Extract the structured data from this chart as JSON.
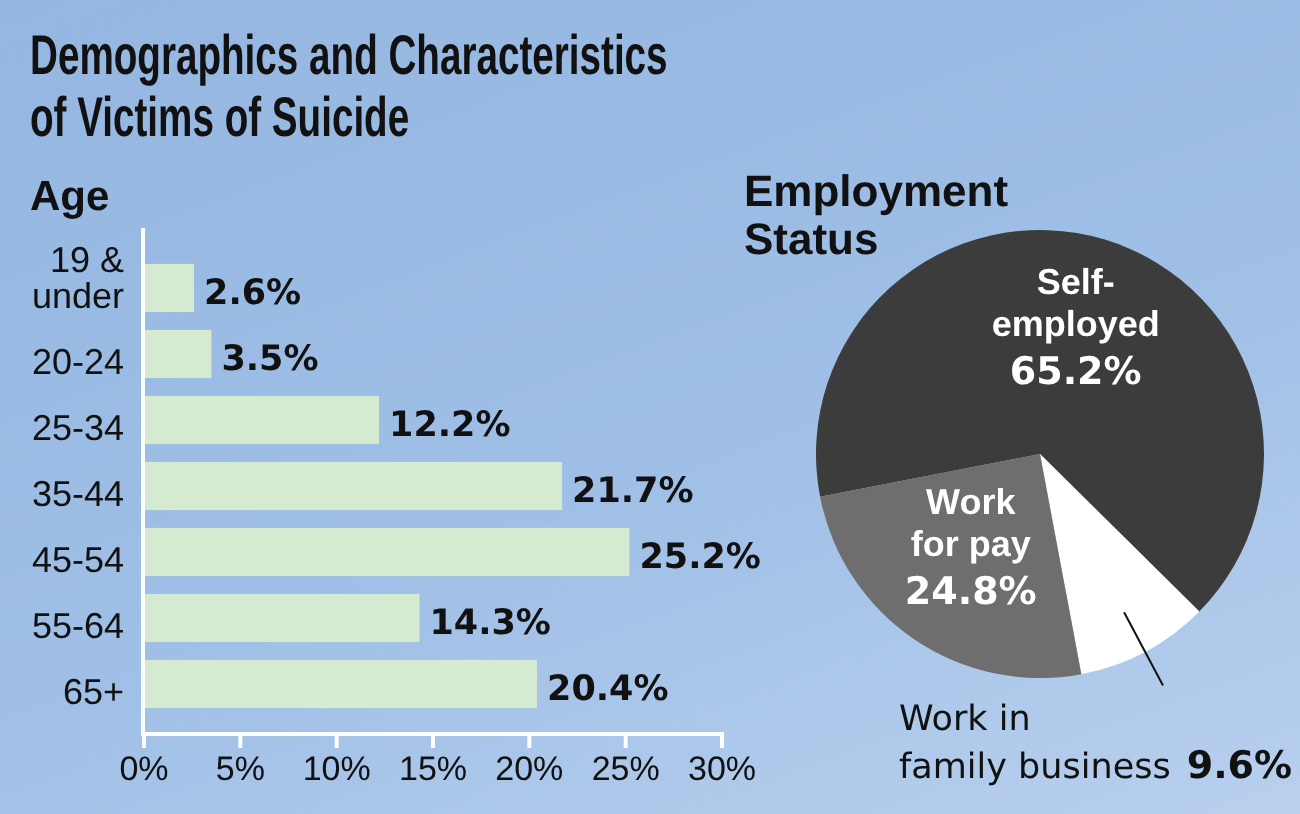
{
  "chart_data": [
    {
      "type": "bar",
      "title": "Demographics and Characteristics of Victims of Suicide",
      "subtitle": "Age",
      "orientation": "horizontal",
      "categories": [
        "19 & under",
        "20-24",
        "25-34",
        "35-44",
        "45-54",
        "55-64",
        "65+"
      ],
      "values": [
        2.6,
        3.5,
        12.2,
        21.7,
        25.2,
        14.3,
        20.4
      ],
      "color": "#d4ebd1",
      "xlim": [
        0,
        30
      ],
      "xticks": [
        {
          "value": 0,
          "label": "0%"
        },
        {
          "value": 5,
          "label": "5%"
        },
        {
          "value": 10,
          "label": "10%"
        },
        {
          "value": 15,
          "label": "15%"
        },
        {
          "value": 20,
          "label": "20%"
        },
        {
          "value": 25,
          "label": "25%"
        },
        {
          "value": 30,
          "label": "30%"
        }
      ],
      "value_labels": [
        "2.6%",
        "3.5%",
        "12.2%",
        "21.7%",
        "25.2%",
        "14.3%",
        "20.4%"
      ]
    },
    {
      "type": "pie",
      "title": "Employment Status",
      "categories": [
        "Self-employed",
        "Work in family business",
        "Work for pay"
      ],
      "values": [
        65.2,
        9.6,
        24.8
      ],
      "colors": [
        "#3c3c3c",
        "#ffffff",
        "#6e6e6e"
      ],
      "value_labels": [
        "65.2%",
        "9.6%",
        "24.8%"
      ]
    }
  ]
}
